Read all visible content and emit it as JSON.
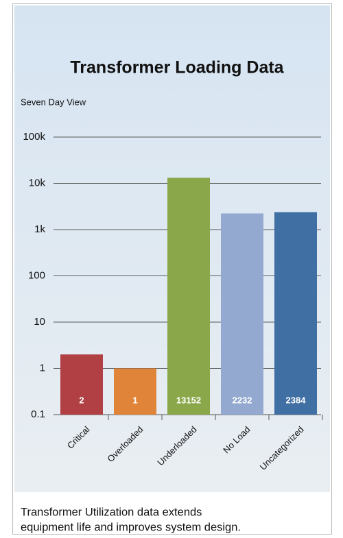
{
  "chart_data": {
    "type": "bar",
    "title": "Transformer Loading Data",
    "subtitle": "Seven Day View",
    "categories": [
      "Critical",
      "Overloaded",
      "Underloaded",
      "No Load",
      "Uncategorized"
    ],
    "values": [
      2,
      1,
      13152,
      2232,
      2384
    ],
    "colors": [
      "#b04044",
      "#e0843a",
      "#8aa84a",
      "#93a9cf",
      "#3f6fa3"
    ],
    "log_scale": true,
    "grid": true,
    "ylim": [
      0.1,
      100000
    ],
    "yticks": [
      0.1,
      1,
      10,
      100,
      {
        "value": 1000,
        "label": "1k"
      },
      {
        "value": 10000,
        "label": "10k"
      },
      {
        "value": 100000,
        "label": "100k"
      }
    ]
  },
  "caption": [
    "Transformer Utilization data extends",
    "equipment life and improves system design."
  ]
}
